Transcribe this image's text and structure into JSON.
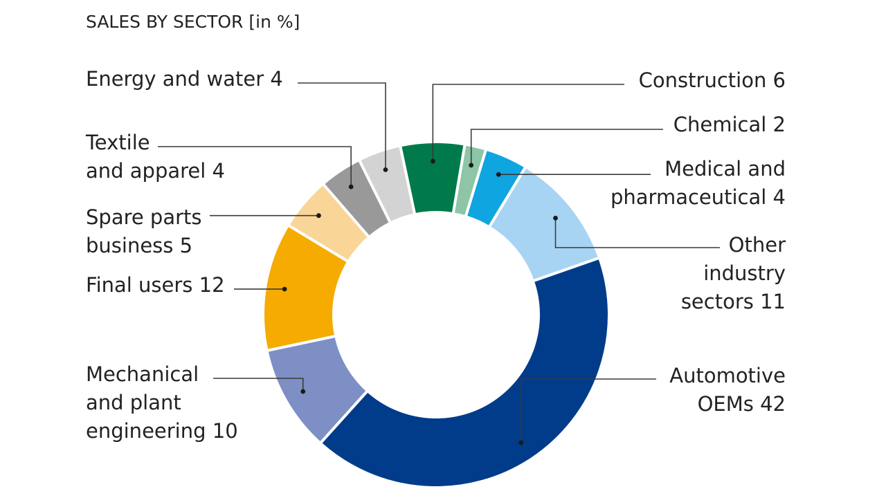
{
  "chart_data": {
    "type": "pie",
    "variant": "donut",
    "title": "SALES BY SECTOR [in %]",
    "unit": "%",
    "categories": [
      "Construction",
      "Chemical",
      "Medical and pharmaceutical",
      "Other industry sectors",
      "Automotive OEMs",
      "Mechanical and plant engineering",
      "Final users",
      "Spare parts business",
      "Textile and apparel",
      "Energy and water"
    ],
    "values": [
      6,
      2,
      4,
      11,
      42,
      10,
      12,
      5,
      4,
      4
    ],
    "colors": [
      "#007a4a",
      "#8dc5a6",
      "#0ea5e0",
      "#a8d4f3",
      "#003c8a",
      "#7d8fc4",
      "#f5ab00",
      "#f9d598",
      "#999999",
      "#d3d3d3"
    ],
    "labels": [
      {
        "lines": [
          "Construction 6"
        ]
      },
      {
        "lines": [
          "Chemical 2"
        ]
      },
      {
        "lines": [
          "Medical and",
          "pharmaceutical 4"
        ]
      },
      {
        "lines": [
          "Other",
          "industry",
          "sectors 11"
        ]
      },
      {
        "lines": [
          "Automotive",
          "OEMs 42"
        ]
      },
      {
        "lines": [
          "Mechanical",
          "and plant",
          "engineering 10"
        ]
      },
      {
        "lines": [
          "Final users 12"
        ]
      },
      {
        "lines": [
          "Spare parts",
          "business 5"
        ]
      },
      {
        "lines": [
          "Textile",
          "and apparel 4"
        ]
      },
      {
        "lines": [
          "Energy and water 4"
        ]
      }
    ]
  }
}
